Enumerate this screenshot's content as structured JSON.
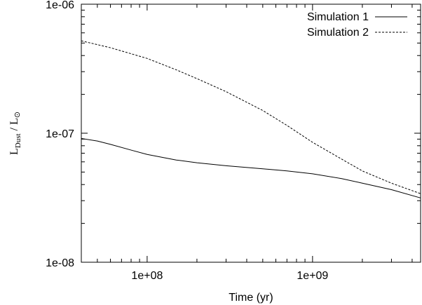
{
  "chart_data": {
    "type": "line",
    "title": "",
    "xlabel": "Time (yr)",
    "ylabel": {
      "main": "L",
      "sub": "Dust",
      "rest": " / L",
      "sun": "⊙"
    },
    "x_scale": "log",
    "y_scale": "log",
    "xlim": [
      40000000,
      4500000000
    ],
    "ylim": [
      1e-08,
      1e-06
    ],
    "grid": false,
    "legend_position": "top-right",
    "x_ticks": [
      {
        "value": 100000000,
        "label": "1e+08"
      },
      {
        "value": 1000000000,
        "label": "1e+09"
      }
    ],
    "y_ticks": [
      {
        "value": 1e-08,
        "label": "1e-08"
      },
      {
        "value": 1e-07,
        "label": "1e-07"
      },
      {
        "value": 1e-06,
        "label": "1e-06"
      }
    ],
    "series": [
      {
        "name": "Simulation 1",
        "style": "solid",
        "color": "#000000",
        "x": [
          40000000,
          50000000,
          60000000,
          80000000,
          100000000,
          150000000,
          200000000,
          300000000,
          500000000,
          700000000,
          1000000000,
          1500000000,
          2000000000,
          3000000000,
          4500000000
        ],
        "y": [
          9.1e-08,
          8.7e-08,
          8.2e-08,
          7.4e-08,
          6.85e-08,
          6.2e-08,
          5.9e-08,
          5.6e-08,
          5.3e-08,
          5.1e-08,
          4.85e-08,
          4.45e-08,
          4.1e-08,
          3.65e-08,
          3.15e-08
        ]
      },
      {
        "name": "Simulation 2",
        "style": "dashed",
        "color": "#000000",
        "x": [
          40000000,
          60000000,
          100000000,
          150000000,
          200000000,
          300000000,
          500000000,
          700000000,
          1000000000,
          1500000000,
          2000000000,
          3000000000,
          4500000000
        ],
        "y": [
          5.2e-07,
          4.6e-07,
          3.8e-07,
          3.1e-07,
          2.65e-07,
          2.1e-07,
          1.5e-07,
          1.15e-07,
          8.5e-08,
          6.3e-08,
          5.1e-08,
          4.1e-08,
          3.4e-08
        ]
      }
    ]
  }
}
